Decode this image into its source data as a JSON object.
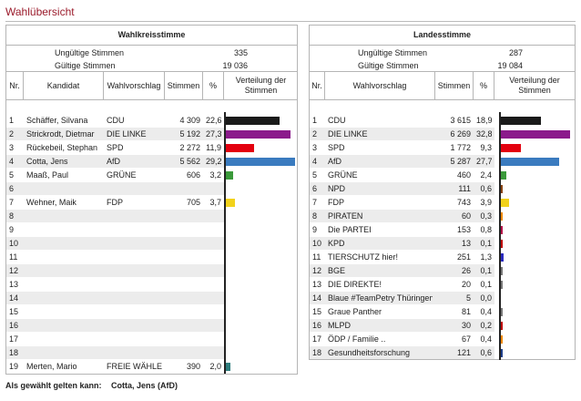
{
  "page_title": "Wahlübersicht",
  "erststimme": {
    "title": "Wahlkreisstimme",
    "invalid_label": "Ungültige Stimmen",
    "invalid_value": "335",
    "valid_label": "Gültige Stimmen",
    "valid_value": "19 036",
    "headers": {
      "nr": "Nr.",
      "kandidat": "Kandidat",
      "vorschlag": "Wahlvorschlag",
      "stimmen": "Stimmen",
      "pct": "%",
      "verteilung": "Verteilung der Stimmen"
    },
    "rows": [
      {
        "nr": "1",
        "kandidat": "Schäffer, Silvana",
        "vorschlag": "CDU",
        "stimmen": "4 309",
        "pct": "22,6",
        "share": 22.6,
        "color": "#1a1a1a"
      },
      {
        "nr": "2",
        "kandidat": "Strickrodt, Dietmar",
        "vorschlag": "DIE LINKE",
        "stimmen": "5 192",
        "pct": "27,3",
        "share": 27.3,
        "color": "#8b1a8b"
      },
      {
        "nr": "3",
        "kandidat": "Rückebeil, Stephan",
        "vorschlag": "SPD",
        "stimmen": "2 272",
        "pct": "11,9",
        "share": 11.9,
        "color": "#e3000f"
      },
      {
        "nr": "4",
        "kandidat": "Cotta, Jens",
        "vorschlag": "AfD",
        "stimmen": "5 562",
        "pct": "29,2",
        "share": 29.2,
        "color": "#3a7bbf"
      },
      {
        "nr": "5",
        "kandidat": "Maaß, Paul",
        "vorschlag": "GRÜNE",
        "stimmen": "606",
        "pct": "3,2",
        "share": 3.2,
        "color": "#3a9a3a"
      },
      {
        "nr": "6",
        "kandidat": "",
        "vorschlag": "",
        "stimmen": "",
        "pct": "",
        "share": 0,
        "color": ""
      },
      {
        "nr": "7",
        "kandidat": "Wehner, Maik",
        "vorschlag": "FDP",
        "stimmen": "705",
        "pct": "3,7",
        "share": 3.7,
        "color": "#f2d21b"
      },
      {
        "nr": "8",
        "kandidat": "",
        "vorschlag": "",
        "stimmen": "",
        "pct": "",
        "share": 0,
        "color": ""
      },
      {
        "nr": "9",
        "kandidat": "",
        "vorschlag": "",
        "stimmen": "",
        "pct": "",
        "share": 0,
        "color": ""
      },
      {
        "nr": "10",
        "kandidat": "",
        "vorschlag": "",
        "stimmen": "",
        "pct": "",
        "share": 0,
        "color": ""
      },
      {
        "nr": "11",
        "kandidat": "",
        "vorschlag": "",
        "stimmen": "",
        "pct": "",
        "share": 0,
        "color": ""
      },
      {
        "nr": "12",
        "kandidat": "",
        "vorschlag": "",
        "stimmen": "",
        "pct": "",
        "share": 0,
        "color": ""
      },
      {
        "nr": "13",
        "kandidat": "",
        "vorschlag": "",
        "stimmen": "",
        "pct": "",
        "share": 0,
        "color": ""
      },
      {
        "nr": "14",
        "kandidat": "",
        "vorschlag": "",
        "stimmen": "",
        "pct": "",
        "share": 0,
        "color": ""
      },
      {
        "nr": "15",
        "kandidat": "",
        "vorschlag": "",
        "stimmen": "",
        "pct": "",
        "share": 0,
        "color": ""
      },
      {
        "nr": "16",
        "kandidat": "",
        "vorschlag": "",
        "stimmen": "",
        "pct": "",
        "share": 0,
        "color": ""
      },
      {
        "nr": "17",
        "kandidat": "",
        "vorschlag": "",
        "stimmen": "",
        "pct": "",
        "share": 0,
        "color": ""
      },
      {
        "nr": "18",
        "kandidat": "",
        "vorschlag": "",
        "stimmen": "",
        "pct": "",
        "share": 0,
        "color": ""
      },
      {
        "nr": "19",
        "kandidat": "Merten, Mario",
        "vorschlag": "FREIE WÄHLER",
        "stimmen": "390",
        "pct": "2,0",
        "share": 2.0,
        "color": "#2e7d7d"
      }
    ]
  },
  "zweitstimme": {
    "title": "Landesstimme",
    "invalid_label": "Ungültige Stimmen",
    "invalid_value": "287",
    "valid_label": "Gültige Stimmen",
    "valid_value": "19 084",
    "headers": {
      "nr": "Nr.",
      "vorschlag": "Wahlvorschlag",
      "stimmen": "Stimmen",
      "pct": "%",
      "verteilung": "Verteilung der Stimmen"
    },
    "rows": [
      {
        "nr": "1",
        "vorschlag": "CDU",
        "stimmen": "3 615",
        "pct": "18,9",
        "share": 18.9,
        "color": "#1a1a1a"
      },
      {
        "nr": "2",
        "vorschlag": "DIE LINKE",
        "stimmen": "6 269",
        "pct": "32,8",
        "share": 32.8,
        "color": "#8b1a8b"
      },
      {
        "nr": "3",
        "vorschlag": "SPD",
        "stimmen": "1 772",
        "pct": "9,3",
        "share": 9.3,
        "color": "#e3000f"
      },
      {
        "nr": "4",
        "vorschlag": "AfD",
        "stimmen": "5 287",
        "pct": "27,7",
        "share": 27.7,
        "color": "#3a7bbf"
      },
      {
        "nr": "5",
        "vorschlag": "GRÜNE",
        "stimmen": "460",
        "pct": "2,4",
        "share": 2.4,
        "color": "#3a9a3a"
      },
      {
        "nr": "6",
        "vorschlag": "NPD",
        "stimmen": "111",
        "pct": "0,6",
        "share": 0.6,
        "color": "#8b4513"
      },
      {
        "nr": "7",
        "vorschlag": "FDP",
        "stimmen": "743",
        "pct": "3,9",
        "share": 3.9,
        "color": "#f2d21b"
      },
      {
        "nr": "8",
        "vorschlag": "PIRATEN",
        "stimmen": "60",
        "pct": "0,3",
        "share": 0.3,
        "color": "#f08a00"
      },
      {
        "nr": "9",
        "vorschlag": "Die PARTEI",
        "stimmen": "153",
        "pct": "0,8",
        "share": 0.8,
        "color": "#b5124a"
      },
      {
        "nr": "10",
        "vorschlag": "KPD",
        "stimmen": "13",
        "pct": "0,1",
        "share": 0.1,
        "color": "#c00000"
      },
      {
        "nr": "11",
        "vorschlag": "TIERSCHUTZ hier!",
        "stimmen": "251",
        "pct": "1,3",
        "share": 1.3,
        "color": "#2b2bbf"
      },
      {
        "nr": "12",
        "vorschlag": "BGE",
        "stimmen": "26",
        "pct": "0,1",
        "share": 0.1,
        "color": "#777777"
      },
      {
        "nr": "13",
        "vorschlag": "DIE DIREKTE!",
        "stimmen": "20",
        "pct": "0,1",
        "share": 0.1,
        "color": "#777777"
      },
      {
        "nr": "14",
        "vorschlag": "Blaue #TeamPetry Thüringen",
        "stimmen": "5",
        "pct": "0,0",
        "share": 0.0,
        "color": "#1e3f8a"
      },
      {
        "nr": "15",
        "vorschlag": "Graue Panther",
        "stimmen": "81",
        "pct": "0,4",
        "share": 0.4,
        "color": "#777777"
      },
      {
        "nr": "16",
        "vorschlag": "MLPD",
        "stimmen": "30",
        "pct": "0,2",
        "share": 0.2,
        "color": "#c00000"
      },
      {
        "nr": "17",
        "vorschlag": "ÖDP / Familie ..",
        "stimmen": "67",
        "pct": "0,4",
        "share": 0.4,
        "color": "#f08a00"
      },
      {
        "nr": "18",
        "vorschlag": "Gesundheitsforschung",
        "stimmen": "121",
        "pct": "0,6",
        "share": 0.6,
        "color": "#1e3f8a"
      }
    ]
  },
  "winner": {
    "label": "Als gewählt gelten kann:",
    "name": "Cotta, Jens (AfD)"
  }
}
